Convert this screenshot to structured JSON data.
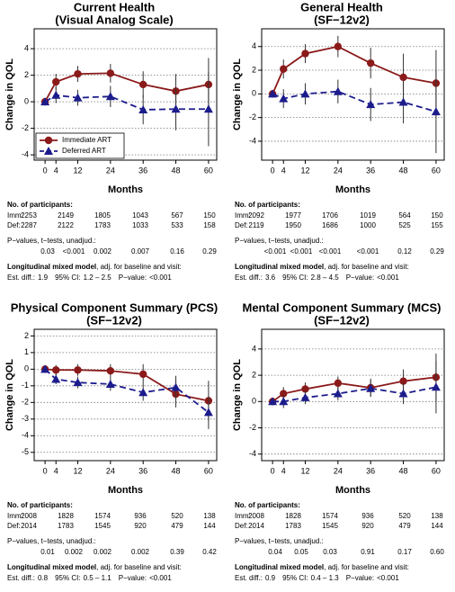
{
  "chart_data": [
    {
      "type": "line",
      "title": "Current Health",
      "subtitle": "(Visual Analog Scale)",
      "ylabel": "Change in QOL",
      "xlabel": "Months",
      "x": [
        0,
        4,
        12,
        24,
        36,
        48,
        60
      ],
      "xlim": [
        -4,
        63
      ],
      "xticks": [
        0,
        4,
        12,
        24,
        36,
        48,
        60
      ],
      "ylim": [
        -4.4,
        5.5
      ],
      "yticks": [
        -4,
        -2,
        0,
        2,
        4
      ],
      "grid": true,
      "legend": "lower left",
      "series": [
        {
          "name": "Immediate ART",
          "color": "#8b1a1a",
          "marker": "circle",
          "line_style": "solid",
          "values": [
            0,
            1.5,
            2.1,
            2.15,
            1.3,
            0.8,
            1.3
          ],
          "errors": [
            0,
            0.6,
            0.6,
            0.7,
            1.0,
            1.3,
            2.0
          ]
        },
        {
          "name": "Deferred ART",
          "color": "#1c1c8c",
          "marker": "triangle",
          "line_style": "dashed",
          "values": [
            0,
            0.5,
            0.3,
            0.4,
            -0.6,
            -0.55,
            -0.55
          ],
          "errors": [
            0,
            0.6,
            0.6,
            0.8,
            1.1,
            1.6,
            2.8
          ]
        }
      ],
      "table": {
        "participants_label": "No. of participants:",
        "row_labels": [
          "Imm:",
          "Def:"
        ],
        "counts": [
          [
            2253,
            2149,
            1805,
            1043,
            567,
            150
          ],
          [
            2287,
            2122,
            1783,
            1033,
            533,
            158
          ]
        ],
        "pvalues_label": "P−values, t−tests, unadjud.:",
        "pvalues": [
          "0.03",
          "<0.001",
          "0.002",
          "0.007",
          "0.16",
          "0.29"
        ],
        "model_label": "Longitudinal mixed model",
        "model_note": ", adj. for baseline and visit:",
        "est_label": "Est. diff.:",
        "est": 1.9,
        "ci_label": "95% CI:",
        "ci": "1.2 – 2.5",
        "p_label": "P−value:",
        "p": "<0.001"
      }
    },
    {
      "type": "line",
      "title": "General Health",
      "subtitle": "(SF−12v2)",
      "ylabel": "Change in QOL",
      "xlabel": "Months",
      "x": [
        0,
        4,
        12,
        24,
        36,
        48,
        60
      ],
      "xlim": [
        -4,
        63
      ],
      "xticks": [
        0,
        4,
        12,
        24,
        36,
        48,
        60
      ],
      "ylim": [
        -5.6,
        5.5
      ],
      "yticks": [
        -4,
        -2,
        0,
        2,
        4
      ],
      "grid": true,
      "series": [
        {
          "name": "Immediate ART",
          "color": "#8b1a1a",
          "marker": "circle",
          "line_style": "solid",
          "values": [
            0,
            2.1,
            3.4,
            4.0,
            2.6,
            1.4,
            0.9
          ],
          "errors": [
            0,
            0.8,
            0.8,
            0.9,
            1.3,
            2.0,
            2.8
          ]
        },
        {
          "name": "Deferred ART",
          "color": "#1c1c8c",
          "marker": "triangle",
          "line_style": "dashed",
          "values": [
            0,
            -0.4,
            0,
            0.2,
            -0.9,
            -0.7,
            -1.5
          ],
          "errors": [
            0,
            0.8,
            0.9,
            1.0,
            1.4,
            1.8,
            3.5
          ]
        }
      ],
      "table": {
        "participants_label": "No. of participants:",
        "row_labels": [
          "Imm:",
          "Def:"
        ],
        "counts": [
          [
            2092,
            1977,
            1706,
            1019,
            564,
            150
          ],
          [
            2119,
            1950,
            1686,
            1000,
            525,
            155
          ]
        ],
        "pvalues_label": "P−values, t−tests, unadjud.:",
        "pvalues": [
          "<0.001",
          "<0.001",
          "<0.001",
          "<0.001",
          "0.12",
          "0.29"
        ],
        "model_label": "Longitudinal mixed model",
        "model_note": ", adj. for baseline and visit:",
        "est_label": "Est. diff.:",
        "est": 3.6,
        "ci_label": "95% CI:",
        "ci": "2.8 – 4.5",
        "p_label": "P−value:",
        "p": "<0.001"
      }
    },
    {
      "type": "line",
      "title": "Physical Component Summary (PCS)",
      "subtitle": "(SF−12v2)",
      "ylabel": "Change in QOL",
      "xlabel": "Months",
      "x": [
        0,
        4,
        12,
        24,
        36,
        48,
        60
      ],
      "xlim": [
        -4,
        63
      ],
      "xticks": [
        0,
        4,
        12,
        24,
        36,
        48,
        60
      ],
      "ylim": [
        -5.5,
        2.4
      ],
      "yticks": [
        -5,
        -4,
        -3,
        -2,
        -1,
        0,
        1,
        2
      ],
      "grid": true,
      "series": [
        {
          "name": "Immediate ART",
          "color": "#8b1a1a",
          "marker": "circle",
          "line_style": "solid",
          "values": [
            0,
            -0.05,
            -0.05,
            -0.1,
            -0.3,
            -1.5,
            -1.9
          ],
          "errors": [
            0,
            0.3,
            0.35,
            0.4,
            0.6,
            0.8,
            1.2
          ]
        },
        {
          "name": "Deferred ART",
          "color": "#1c1c8c",
          "marker": "triangle",
          "line_style": "dashed",
          "values": [
            0,
            -0.6,
            -0.8,
            -0.9,
            -1.4,
            -1.1,
            -2.6
          ],
          "errors": [
            0,
            0.3,
            0.35,
            0.4,
            0.5,
            0.7,
            1.0
          ]
        }
      ],
      "table": {
        "participants_label": "No. of participants:",
        "row_labels": [
          "Imm:",
          "Def:"
        ],
        "counts": [
          [
            2008,
            1828,
            1574,
            936,
            520,
            138
          ],
          [
            2014,
            1783,
            1545,
            920,
            479,
            144
          ]
        ],
        "pvalues_label": "P−values, t−tests, unadjud.:",
        "pvalues": [
          "0.01",
          "0.002",
          "0.002",
          "0.002",
          "0.39",
          "0.42"
        ],
        "model_label": "Longitudinal mixed model",
        "model_note": ", adj. for baseline and visit:",
        "est_label": "Est. diff.:",
        "est": 0.8,
        "ci_label": "95% CI:",
        "ci": "0.5 – 1.1",
        "p_label": "P−value:",
        "p": "<0.001"
      }
    },
    {
      "type": "line",
      "title": "Mental Component Summary (MCS)",
      "subtitle": "(SF−12v2)",
      "ylabel": "Change in QOL",
      "xlabel": "Months",
      "x": [
        0,
        4,
        12,
        24,
        36,
        48,
        60
      ],
      "xlim": [
        -4,
        63
      ],
      "xticks": [
        0,
        4,
        12,
        24,
        36,
        48,
        60
      ],
      "ylim": [
        -4.5,
        5.5
      ],
      "yticks": [
        -4,
        -2,
        0,
        2,
        4
      ],
      "grid": true,
      "series": [
        {
          "name": "Immediate ART",
          "color": "#8b1a1a",
          "marker": "circle",
          "line_style": "solid",
          "values": [
            0,
            0.6,
            0.95,
            1.4,
            1.05,
            1.55,
            1.85
          ],
          "errors": [
            0,
            0.5,
            0.5,
            0.5,
            0.7,
            0.9,
            1.8
          ]
        },
        {
          "name": "Deferred ART",
          "color": "#1c1c8c",
          "marker": "triangle",
          "line_style": "dashed",
          "values": [
            0,
            0,
            0.3,
            0.6,
            1.0,
            0.6,
            1.1
          ],
          "errors": [
            0,
            0.5,
            0.5,
            0.5,
            0.6,
            0.8,
            2.0
          ]
        }
      ],
      "table": {
        "participants_label": "No. of participants:",
        "row_labels": [
          "Imm:",
          "Def:"
        ],
        "counts": [
          [
            2008,
            1828,
            1574,
            936,
            520,
            138
          ],
          [
            2014,
            1783,
            1545,
            920,
            479,
            144
          ]
        ],
        "pvalues_label": "P−values, t−tests, unadjud.:",
        "pvalues": [
          "0.04",
          "0.05",
          "0.03",
          "0.91",
          "0.17",
          "0.60"
        ],
        "model_label": "Longitudinal mixed model",
        "model_note": ", adj. for baseline and visit:",
        "est_label": "Est. diff.:",
        "est": 0.9,
        "ci_label": "95% CI:",
        "ci": "0.4 – 1.3",
        "p_label": "P−value:",
        "p": "<0.001"
      }
    }
  ]
}
